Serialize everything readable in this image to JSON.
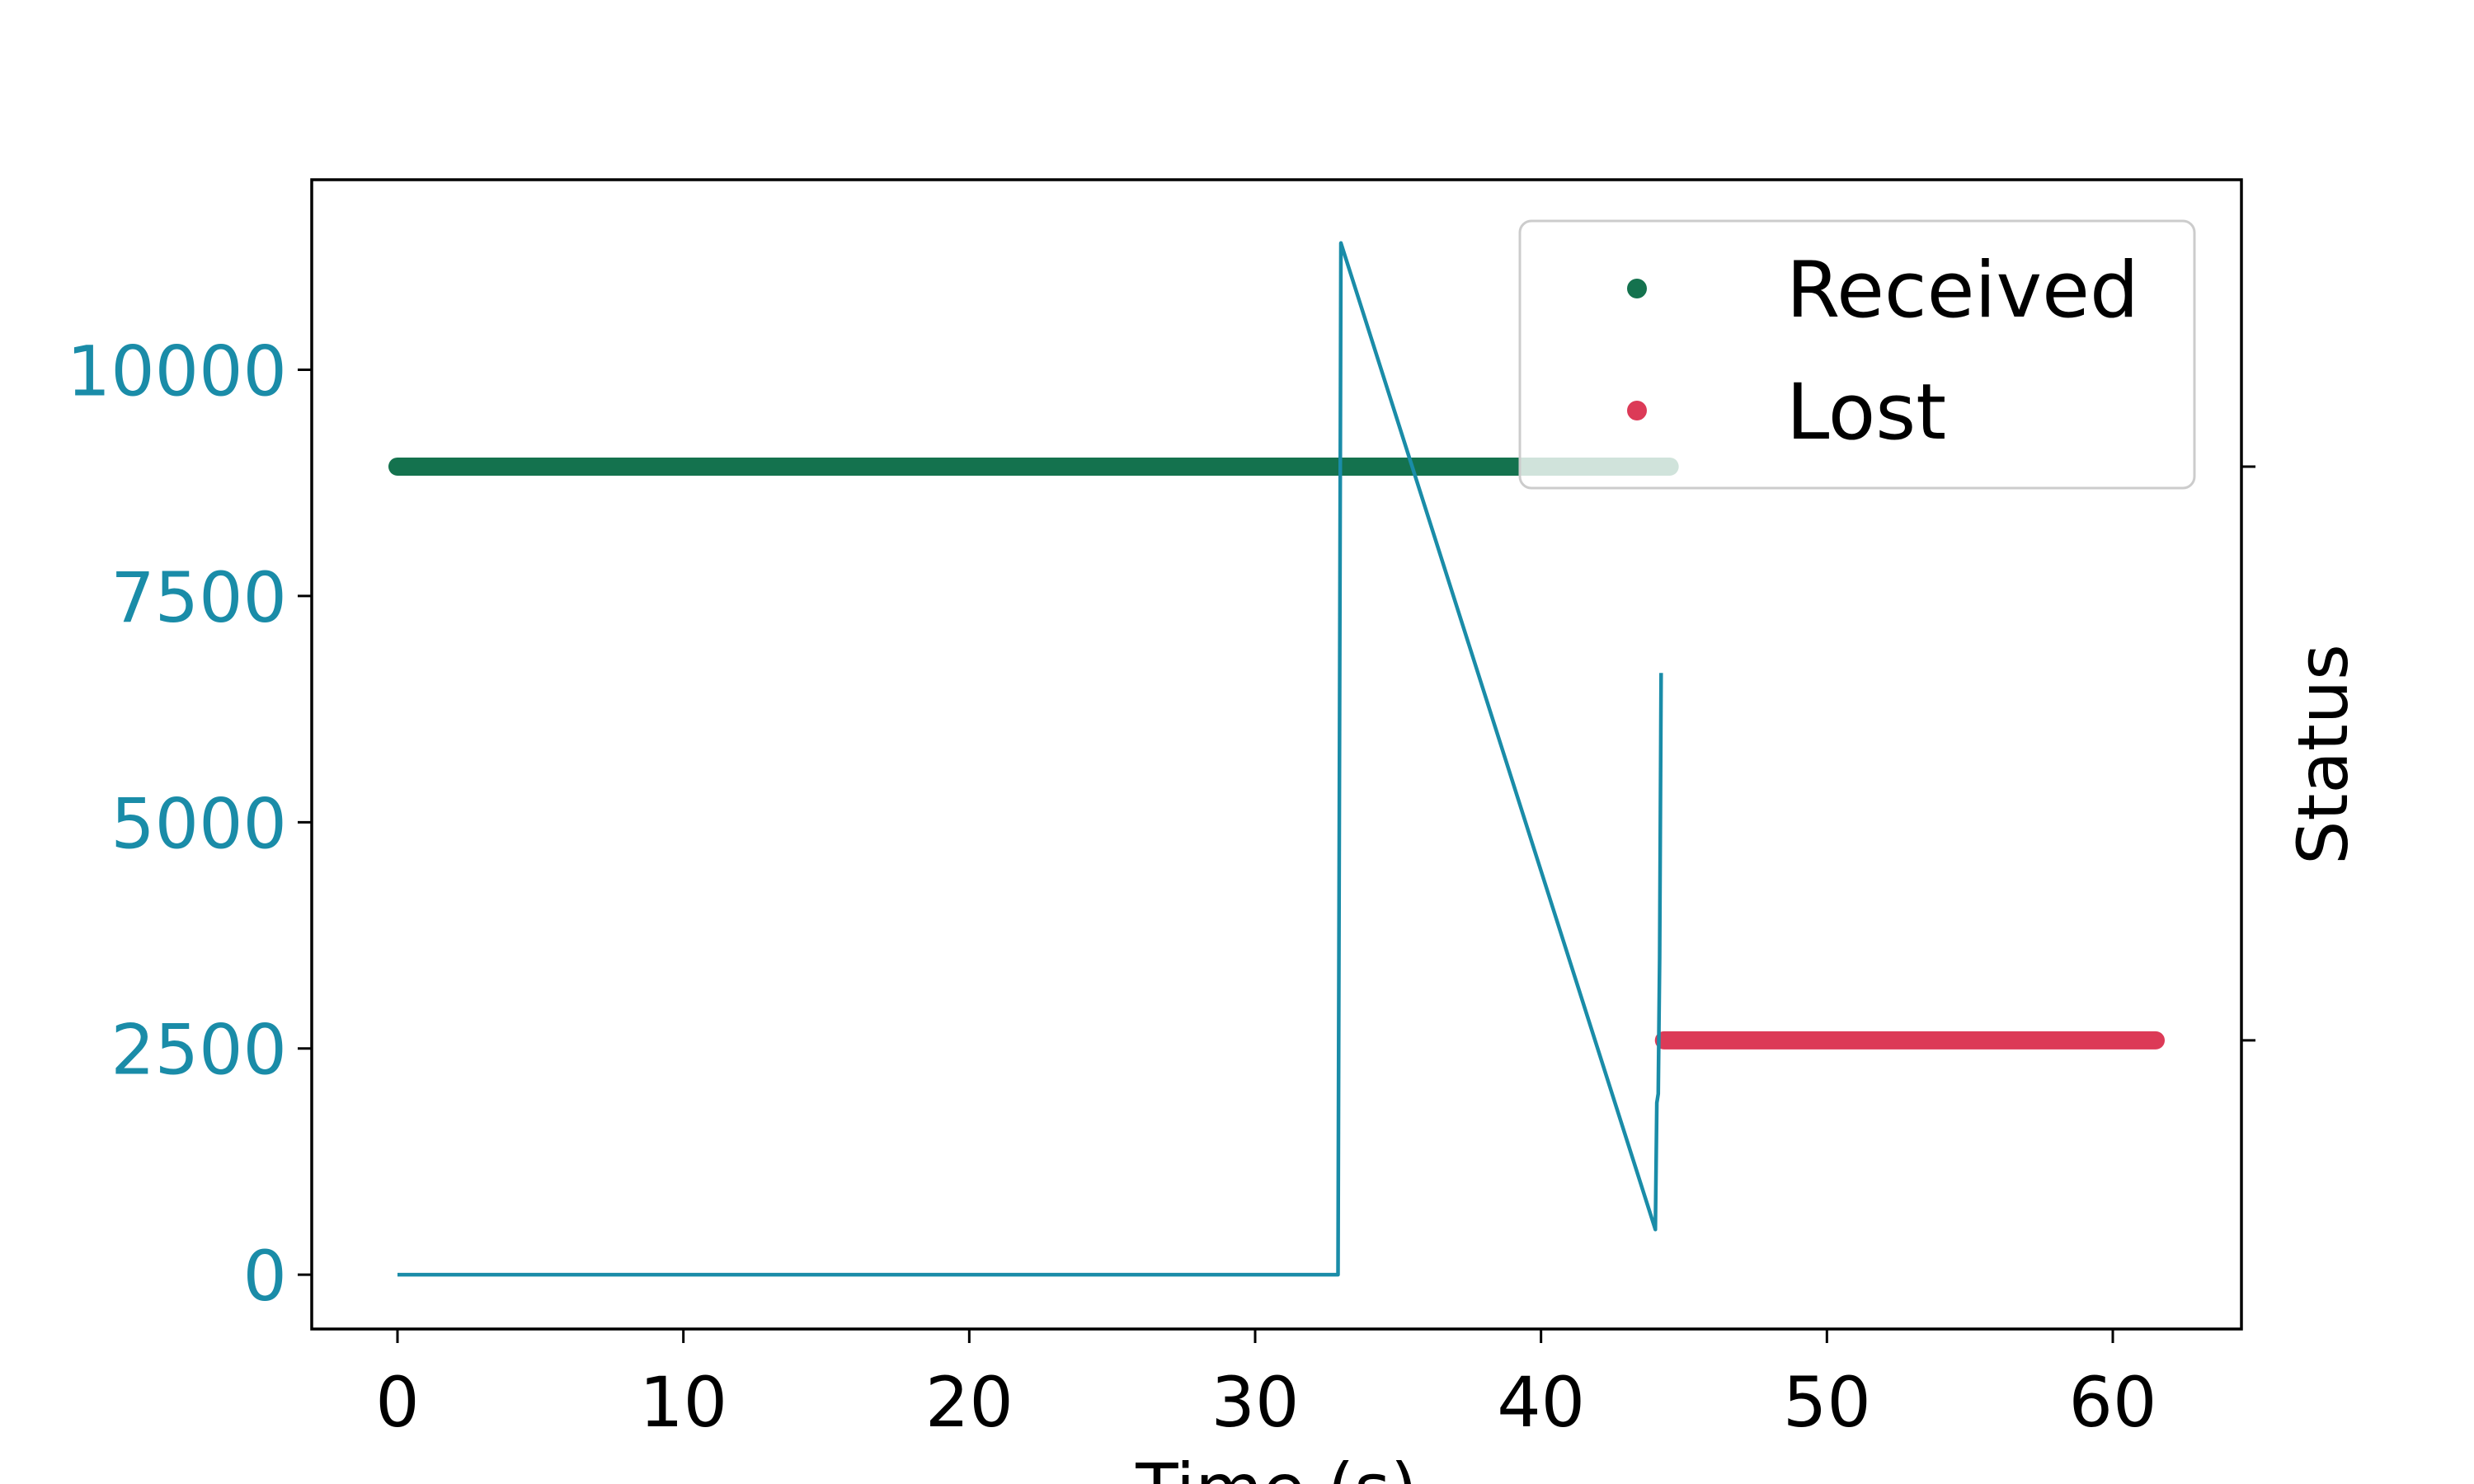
{
  "chart_data": {
    "type": "line",
    "xlabel": "Time (s)",
    "ylabel_right": "Status",
    "xlim": [
      -3,
      64.5
    ],
    "ylim": [
      -600,
      12100
    ],
    "xticks": [
      0,
      10,
      20,
      30,
      40,
      50,
      60
    ],
    "yticks": [
      0,
      2500,
      5000,
      7500,
      10000
    ],
    "grid": false,
    "legend": {
      "position": "top-right",
      "entries": [
        {
          "label": "Received",
          "color": "#14724e"
        },
        {
          "label": "Lost",
          "color": "#dc3a57"
        }
      ]
    },
    "line_series": {
      "color": "#1a8ca8",
      "points": [
        [
          0,
          0
        ],
        [
          32.9,
          0
        ],
        [
          33.0,
          11400
        ],
        [
          44.0,
          500
        ],
        [
          44.05,
          1900
        ],
        [
          44.1,
          2000
        ],
        [
          44.15,
          3500
        ],
        [
          44.2,
          6650
        ]
      ]
    },
    "status_series": [
      {
        "name": "Received",
        "color": "#14724e",
        "x_start": 0,
        "x_end": 44.5,
        "y_level": 8930
      },
      {
        "name": "Lost",
        "color": "#dc3a57",
        "x_start": 44.3,
        "x_end": 61.5,
        "y_level": 2590
      }
    ]
  }
}
